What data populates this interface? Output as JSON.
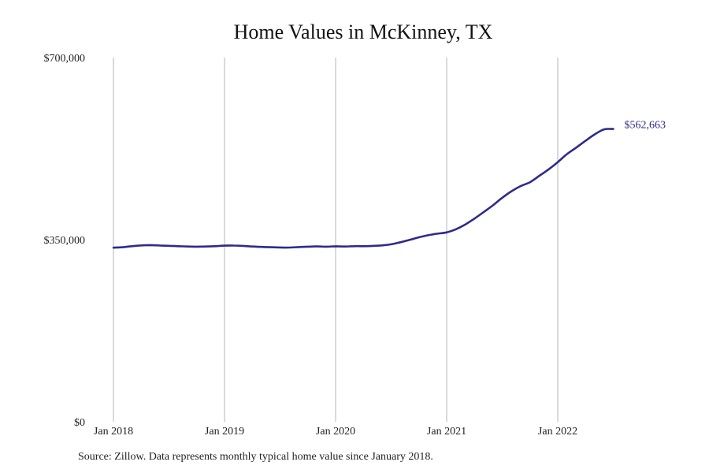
{
  "chart_data": {
    "type": "line",
    "title": "Home Values in McKinney, TX",
    "xlabel": "",
    "ylabel": "",
    "x_range": [
      "2018-01",
      "2022-07"
    ],
    "ylim": [
      0,
      700000
    ],
    "y_ticks": [
      {
        "value": 0,
        "label": "$0"
      },
      {
        "value": 350000,
        "label": "$350,000"
      },
      {
        "value": 700000,
        "label": "$700,000"
      }
    ],
    "x_ticks": [
      {
        "value": "2018-01",
        "label": "Jan 2018"
      },
      {
        "value": "2019-01",
        "label": "Jan 2019"
      },
      {
        "value": "2020-01",
        "label": "Jan 2020"
      },
      {
        "value": "2021-01",
        "label": "Jan 2021"
      },
      {
        "value": "2022-01",
        "label": "Jan 2022"
      }
    ],
    "grid": {
      "vertical": true,
      "horizontal": false
    },
    "line_color": "#2e2a8c",
    "grid_color": "#b5b5b5",
    "end_label": "$562,663",
    "series": [
      {
        "x": [
          "2018-01",
          "2018-02",
          "2018-03",
          "2018-04",
          "2018-05",
          "2018-06",
          "2018-07",
          "2018-08",
          "2018-09",
          "2018-10",
          "2018-11",
          "2018-12",
          "2019-01",
          "2019-02",
          "2019-03",
          "2019-04",
          "2019-05",
          "2019-06",
          "2019-07",
          "2019-08",
          "2019-09",
          "2019-10",
          "2019-11",
          "2019-12",
          "2020-01",
          "2020-02",
          "2020-03",
          "2020-04",
          "2020-05",
          "2020-06",
          "2020-07",
          "2020-08",
          "2020-09",
          "2020-10",
          "2020-11",
          "2020-12",
          "2021-01",
          "2021-02",
          "2021-03",
          "2021-04",
          "2021-05",
          "2021-06",
          "2021-07",
          "2021-08",
          "2021-09",
          "2021-10",
          "2021-11",
          "2021-12",
          "2022-01",
          "2022-02",
          "2022-03",
          "2022-04",
          "2022-05",
          "2022-06",
          "2022-07"
        ],
        "values": [
          334500,
          335500,
          337500,
          339000,
          339500,
          338800,
          338200,
          337500,
          336800,
          336500,
          336800,
          337500,
          338500,
          338700,
          338000,
          336800,
          336000,
          335500,
          335000,
          334800,
          335800,
          336500,
          337000,
          336500,
          337200,
          336800,
          337500,
          337500,
          338000,
          339000,
          341000,
          345000,
          349500,
          354500,
          358500,
          361500,
          364000,
          370000,
          379000,
          390500,
          403000,
          416000,
          430500,
          443000,
          453000,
          460500,
          472500,
          485000,
          499000,
          514500,
          527000,
          540000,
          552500,
          562000,
          562663
        ]
      }
    ]
  },
  "footer": {
    "source_text": "Source: Zillow. Data represents monthly typical home value since January 2018."
  }
}
